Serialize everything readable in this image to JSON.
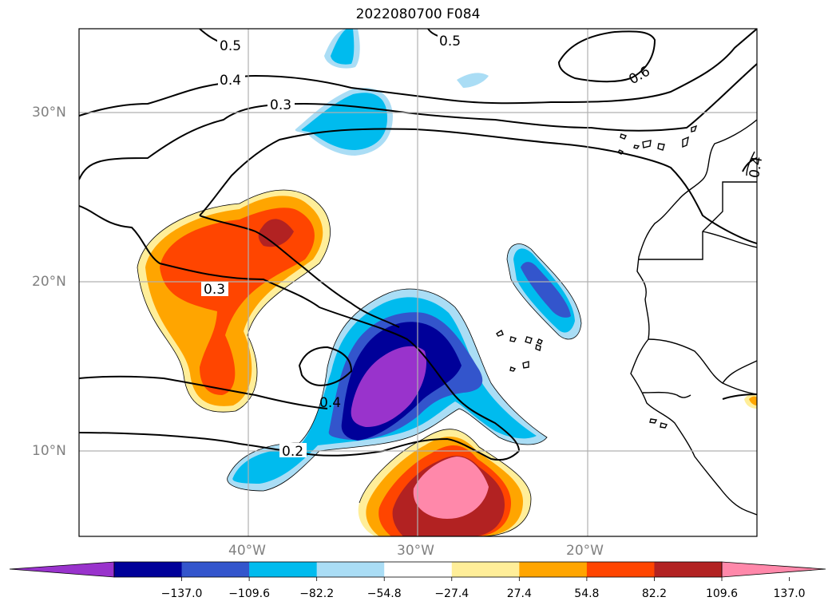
{
  "title": "2022080700 F084",
  "lat_labels": [
    "30°N",
    "20°N",
    "10°N"
  ],
  "lon_labels": [
    "40°W",
    "30°W",
    "20°W"
  ],
  "contour_labels": [
    "0.5",
    "0.5",
    "0.4",
    "0.3",
    "0.6",
    "0.4",
    "0.3",
    "0.4",
    "0.2"
  ],
  "colorbar": {
    "ticks": [
      "−137.0",
      "−109.6",
      "−82.2",
      "−54.8",
      "−27.4",
      "27.4",
      "54.8",
      "82.2",
      "109.6",
      "137.0"
    ],
    "colors": [
      "#9933cc",
      "#000099",
      "#3355cc",
      "#00bbee",
      "#aaddf5",
      "#ffffff",
      "#ffee99",
      "#ffa500",
      "#ff4500",
      "#b22222",
      "#ff88aa"
    ]
  },
  "map_extent": {
    "lon": [
      -50,
      -10
    ],
    "lat": [
      5,
      35
    ]
  }
}
